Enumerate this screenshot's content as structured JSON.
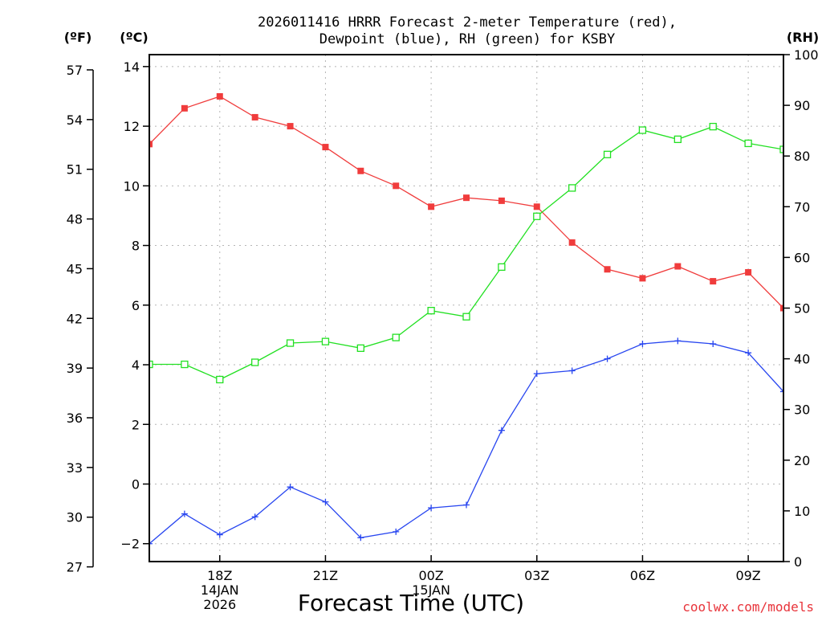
{
  "chart_data": {
    "type": "line",
    "title_line1": "2026011416 HRRR Forecast 2-meter Temperature (red),",
    "title_line2": "Dewpoint (blue), RH (green) for KSBY",
    "unit_f": "(ºF)",
    "unit_c": "(ºC)",
    "unit_rh": "(RH)",
    "xlabel": "Forecast Time (UTC)",
    "credit": "coolwx.com/models",
    "x_range": [
      16,
      34
    ],
    "x_ticks": [
      {
        "x": 18,
        "lines": [
          "18Z",
          "14JAN",
          "2026"
        ]
      },
      {
        "x": 21,
        "lines": [
          "21Z"
        ]
      },
      {
        "x": 24,
        "lines": [
          "00Z",
          "15JAN"
        ]
      },
      {
        "x": 27,
        "lines": [
          "03Z"
        ]
      },
      {
        "x": 30,
        "lines": [
          "06Z"
        ]
      },
      {
        "x": 33,
        "lines": [
          "09Z"
        ]
      }
    ],
    "c_range": [
      -2.6,
      14.4
    ],
    "c_ticks": [
      -2,
      0,
      2,
      4,
      6,
      8,
      10,
      12,
      14
    ],
    "c_tick_labels": [
      "−2",
      "0",
      "2",
      "4",
      "6",
      "8",
      "10",
      "12",
      "14"
    ],
    "f_ticks": [
      27,
      30,
      33,
      36,
      39,
      42,
      45,
      48,
      51,
      54,
      57
    ],
    "rh_range": [
      0,
      100
    ],
    "rh_ticks": [
      0,
      10,
      20,
      30,
      40,
      50,
      60,
      70,
      80,
      90,
      100
    ],
    "series": [
      {
        "name": "Temperature (°C)",
        "color": "#f03c3c",
        "marker": "filled-square",
        "axis": "c",
        "x": [
          16,
          17,
          18,
          19,
          20,
          21,
          22,
          23,
          24,
          25,
          26,
          27,
          28,
          29,
          30,
          31,
          32,
          33,
          34
        ],
        "values": [
          11.4,
          12.6,
          13.0,
          12.3,
          12.0,
          11.3,
          10.5,
          10.0,
          9.3,
          9.6,
          9.5,
          9.3,
          8.1,
          7.2,
          6.9,
          7.3,
          6.8,
          7.1,
          5.9
        ]
      },
      {
        "name": "Dewpoint (°C)",
        "color": "#2846f0",
        "marker": "plus",
        "axis": "c",
        "x": [
          16,
          17,
          18,
          19,
          20,
          21,
          22,
          23,
          24,
          25,
          26,
          27,
          28,
          29,
          30,
          31,
          32,
          33,
          34
        ],
        "values": [
          -2.0,
          -1.0,
          -1.7,
          -1.1,
          -0.1,
          -0.6,
          -1.8,
          -1.6,
          -0.8,
          -0.7,
          1.8,
          3.7,
          3.8,
          4.2,
          4.7,
          4.8,
          4.7,
          4.4,
          3.1
        ]
      },
      {
        "name": "RH (%)",
        "color": "#22e022",
        "marker": "open-square",
        "axis": "rh",
        "x": [
          16,
          17,
          18,
          19,
          20,
          21,
          22,
          23,
          24,
          25,
          26,
          27,
          28,
          29,
          30,
          31,
          32,
          33,
          34
        ],
        "values": [
          38.9,
          38.9,
          35.9,
          39.3,
          43.1,
          43.4,
          42.1,
          44.2,
          49.5,
          48.3,
          58.1,
          68.1,
          73.7,
          80.3,
          85.1,
          83.3,
          85.8,
          82.5,
          81.3
        ]
      }
    ]
  }
}
